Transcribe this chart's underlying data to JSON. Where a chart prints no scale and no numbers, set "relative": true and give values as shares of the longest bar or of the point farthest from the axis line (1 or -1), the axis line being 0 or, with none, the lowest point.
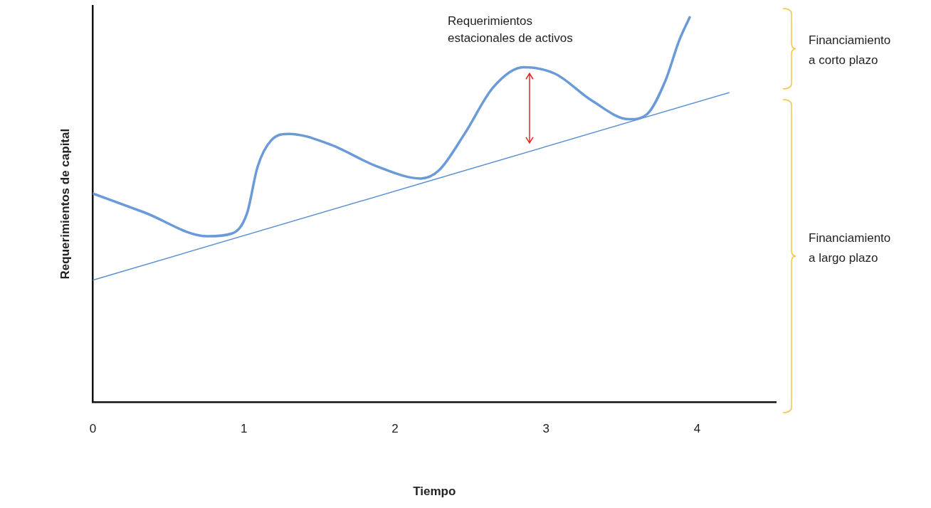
{
  "chart_data": {
    "type": "line",
    "relative": true,
    "xlabel": "Tiempo",
    "ylabel": "Requerimientos de capital",
    "xlim": [
      0,
      4.52
    ],
    "xticks": [
      0,
      1,
      2,
      3,
      4
    ],
    "grid": false,
    "marker": "none",
    "line_style": "solid",
    "series": [
      {
        "color": "#6a9bd8",
        "x": [
          0,
          0.34,
          0.76,
          0.92,
          1.02,
          1.09,
          1.18,
          1.3,
          1.56,
          1.89,
          2.17,
          2.29,
          2.46,
          2.65,
          2.85,
          3.06,
          3.3,
          3.55,
          3.67,
          3.79,
          3.88,
          3.95
        ],
        "values": [
          0.542,
          0.493,
          0.431,
          0.438,
          0.49,
          0.611,
          0.68,
          0.697,
          0.671,
          0.611,
          0.581,
          0.602,
          0.697,
          0.818,
          0.87,
          0.853,
          0.784,
          0.735,
          0.749,
          0.836,
          0.939,
          1.0
        ]
      },
      {
        "color": "#5b8fd0",
        "x": [
          0,
          4.21
        ],
        "values": [
          0.317,
          0.804
        ]
      }
    ],
    "annotations": [
      {
        "text": "Requerimientos estacionales de activos",
        "x": 2.89,
        "y": 0.865
      },
      "Financiamiento a corto plazo",
      "Financiamiento a largo plazo"
    ]
  }
}
